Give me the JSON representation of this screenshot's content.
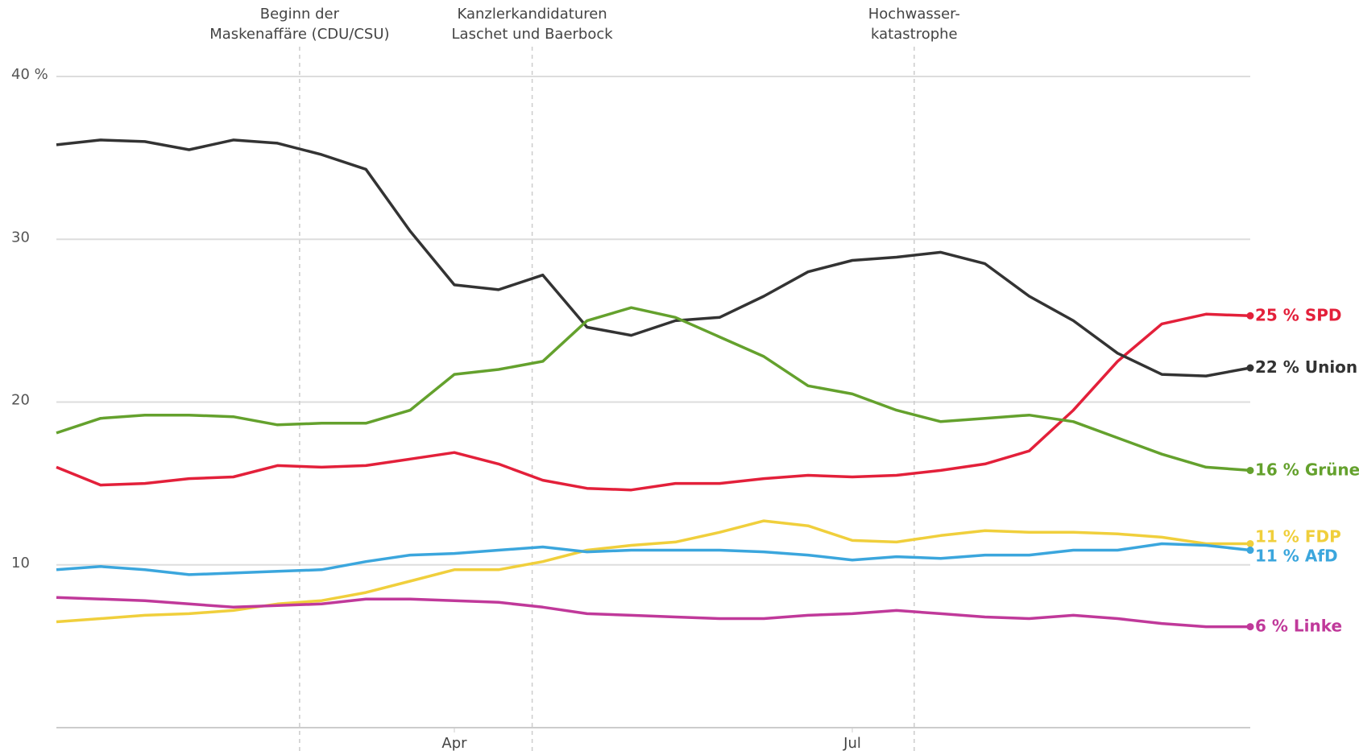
{
  "chart_data": {
    "type": "line",
    "categories": [
      null,
      null,
      null,
      null,
      null,
      null,
      null,
      null,
      null,
      "Apr",
      null,
      null,
      null,
      null,
      null,
      null,
      null,
      null,
      "Jul",
      null,
      null,
      null,
      null,
      null,
      null,
      null,
      null,
      null
    ],
    "ylim": [
      0,
      40
    ],
    "yticks": [
      10,
      20,
      30,
      {
        "value": 40,
        "label": "40 %"
      }
    ],
    "grid": true,
    "annotations": [
      {
        "x": 5.5,
        "text": [
          "Beginn der",
          "Maskenaffäre (CDU/CSU)"
        ]
      },
      {
        "x": 10.76,
        "text": [
          "Kanzlerkandidaturen",
          "Laschet und Baerbock"
        ]
      },
      {
        "x": 19.4,
        "text": [
          "Hochwasser-",
          "katastrophe"
        ]
      }
    ],
    "series": [
      {
        "name": "SPD",
        "color": "#e3203a",
        "end_label": "25 %",
        "values": [
          16,
          14.9,
          15.0,
          15.3,
          15.4,
          16.1,
          16.0,
          16.1,
          16.5,
          16.9,
          16.2,
          15.2,
          14.7,
          14.6,
          15.0,
          15.0,
          15.3,
          15.5,
          15.4,
          15.5,
          15.8,
          16.2,
          17.0,
          19.5,
          22.5,
          24.8,
          25.4,
          25.3
        ]
      },
      {
        "name": "Union",
        "color": "#333333",
        "end_label": "22 %",
        "values": [
          35.8,
          36.1,
          36.0,
          35.5,
          36.1,
          35.9,
          35.2,
          34.3,
          30.5,
          27.2,
          26.9,
          27.8,
          24.6,
          24.1,
          25.0,
          25.2,
          26.5,
          28.0,
          28.7,
          28.9,
          29.2,
          28.5,
          26.5,
          25.0,
          23.0,
          21.7,
          21.6,
          22.1
        ]
      },
      {
        "name": "Grüne",
        "color": "#64a12d",
        "end_label": "16 %",
        "values": [
          18.1,
          19.0,
          19.2,
          19.2,
          19.1,
          18.6,
          18.7,
          18.7,
          19.5,
          21.7,
          22.0,
          22.5,
          25.0,
          25.8,
          25.2,
          24.0,
          22.8,
          21.0,
          20.5,
          19.5,
          18.8,
          19.0,
          19.2,
          18.8,
          17.8,
          16.8,
          16.0,
          15.8
        ]
      },
      {
        "name": "FDP",
        "color": "#f0cf3c",
        "end_label": "11 %",
        "values": [
          6.5,
          6.7,
          6.9,
          7.0,
          7.2,
          7.6,
          7.8,
          8.3,
          9.0,
          9.7,
          9.7,
          10.2,
          10.9,
          11.2,
          11.4,
          12.0,
          12.7,
          12.4,
          11.5,
          11.4,
          11.8,
          12.1,
          12.0,
          12.0,
          11.9,
          11.7,
          11.3,
          11.3
        ]
      },
      {
        "name": "AfD",
        "color": "#3ba6dd",
        "end_label": "11 %",
        "values": [
          9.7,
          9.9,
          9.7,
          9.4,
          9.5,
          9.6,
          9.7,
          10.2,
          10.6,
          10.7,
          10.9,
          11.1,
          10.8,
          10.9,
          10.9,
          10.9,
          10.8,
          10.6,
          10.3,
          10.5,
          10.4,
          10.6,
          10.6,
          10.9,
          10.9,
          11.3,
          11.2,
          10.9
        ]
      },
      {
        "name": "Linke",
        "color": "#c0399a",
        "end_label": "6 %",
        "values": [
          8.0,
          7.9,
          7.8,
          7.6,
          7.4,
          7.5,
          7.6,
          7.9,
          7.9,
          7.8,
          7.7,
          7.4,
          7.0,
          6.9,
          6.8,
          6.7,
          6.7,
          6.9,
          7.0,
          7.2,
          7.0,
          6.8,
          6.7,
          6.9,
          6.7,
          6.4,
          6.2,
          6.2
        ]
      }
    ]
  }
}
